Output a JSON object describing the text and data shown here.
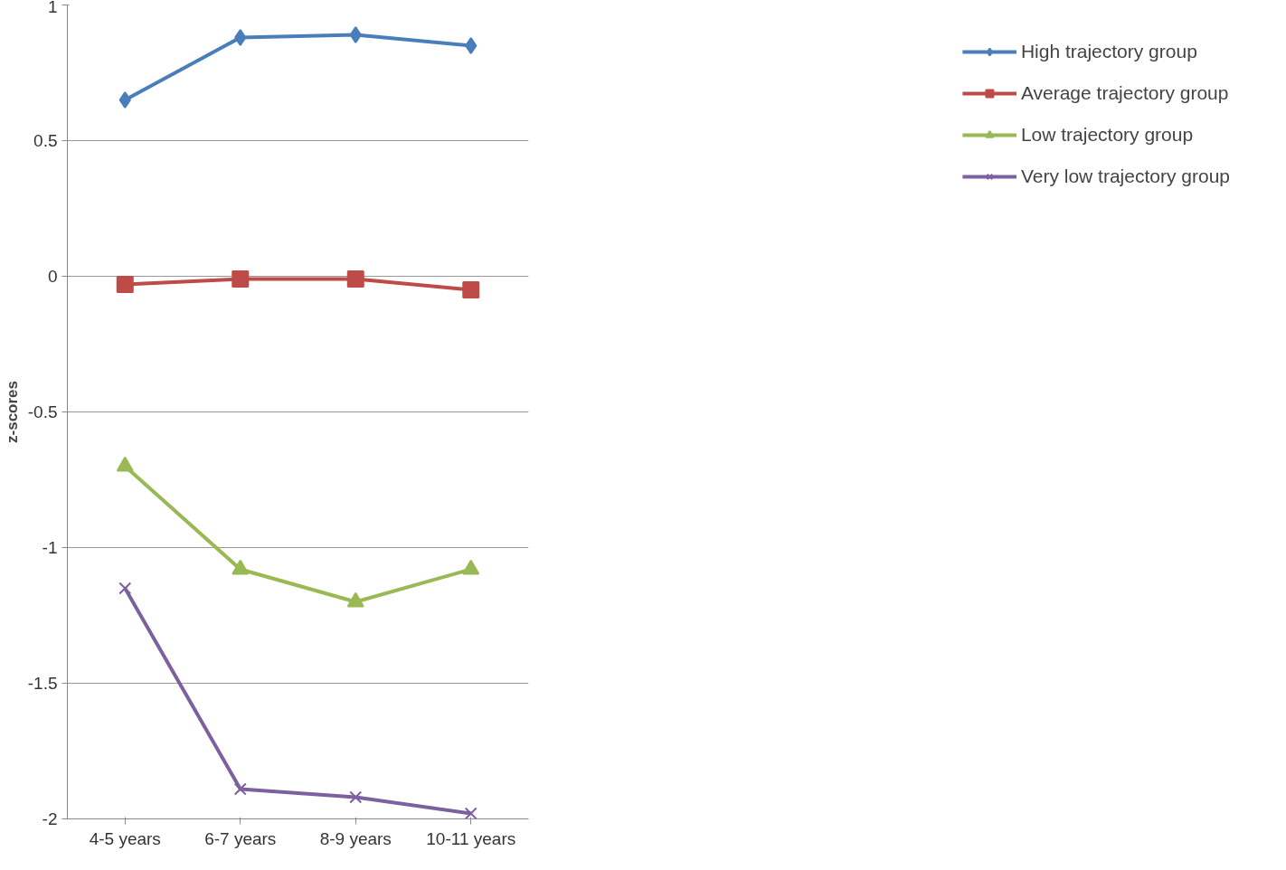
{
  "chart_data": {
    "type": "line",
    "ylabel": "z-scores",
    "categories": [
      "4-5 years",
      "6-7 years",
      "8-9 years",
      "10-11 years"
    ],
    "series": [
      {
        "name": "High trajectory group",
        "color": "#4a7ebb",
        "marker": "diamond",
        "values": [
          0.65,
          0.88,
          0.89,
          0.85
        ]
      },
      {
        "name": "Average trajectory group",
        "color": "#be4b48",
        "marker": "square",
        "values": [
          -0.03,
          -0.01,
          -0.01,
          -0.05
        ]
      },
      {
        "name": "Low trajectory group",
        "color": "#98b954",
        "marker": "triangle",
        "values": [
          -0.7,
          -1.08,
          -1.2,
          -1.08
        ]
      },
      {
        "name": "Very low trajectory group",
        "color": "#7d60a0",
        "marker": "cross",
        "values": [
          -1.15,
          -1.89,
          -1.92,
          -1.98
        ]
      }
    ],
    "ylim": [
      -2,
      1
    ],
    "yticks": [
      -2,
      -1.5,
      -1,
      -0.5,
      0,
      0.5,
      1
    ],
    "grid": "y",
    "legend": "right",
    "line_style": "solid"
  }
}
